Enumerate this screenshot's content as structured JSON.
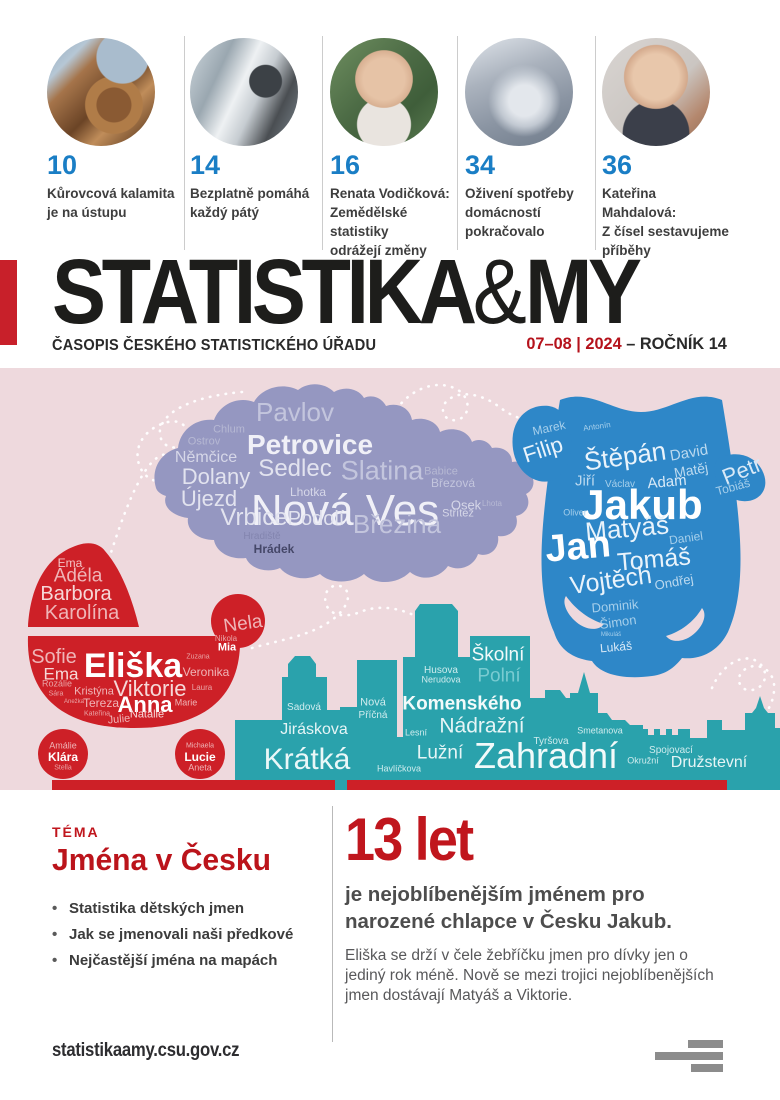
{
  "toc": {
    "items": [
      {
        "page": "10",
        "photo": "logs",
        "caption_lines": [
          "Kůrovcová kalamita",
          "je na ústupu"
        ]
      },
      {
        "page": "14",
        "photo": "van",
        "caption_lines": [
          "Bezplatně pomáhá",
          "každý pátý"
        ]
      },
      {
        "page": "16",
        "photo": "portrait-green",
        "caption_lines": [
          "Renata Vodičková:",
          "Zemědělské statistiky",
          "odrážejí změny"
        ]
      },
      {
        "page": "34",
        "photo": "coins",
        "caption_lines": [
          "Oživení spotřeby",
          "domácností",
          "pokračovalo"
        ]
      },
      {
        "page": "36",
        "photo": "portrait-studio",
        "caption_lines": [
          "Kateřina Mahdalová:",
          "Z čísel sestavujeme",
          "příběhy"
        ]
      }
    ]
  },
  "masthead": {
    "title_main": "STATISTIKA",
    "title_amp": "&",
    "title_end": "MY",
    "subtitle": "ČASOPIS ČESKÉHO STATISTICKÉHO ÚŘADU",
    "issue": "07–08 | 2024",
    "volume": " – ROČNÍK 14"
  },
  "illustration": {
    "clouds": {
      "map_villages": [
        [
          "Pavlov",
          295,
          44,
          26,
          0,
          "#c3c5dd",
          0
        ],
        [
          "Chlum",
          229,
          62,
          11,
          0,
          "#b6b8d3",
          0
        ],
        [
          "Ostrov",
          204,
          74,
          11,
          0,
          "#b6b8d3",
          0
        ],
        [
          "Petrovice",
          310,
          77,
          28,
          1,
          "#f0f0f7",
          0
        ],
        [
          "Němčice",
          206,
          90,
          16,
          0,
          "#d6d7e8",
          0
        ],
        [
          "Sedlec",
          295,
          101,
          24,
          0,
          "#e2e3ef",
          0
        ],
        [
          "Slatina",
          382,
          103,
          27,
          0,
          "#c3c5dd",
          0
        ],
        [
          "Babice",
          441,
          104,
          11,
          0,
          "#b6b8d3",
          0
        ],
        [
          "Dolany",
          216,
          109,
          22,
          0,
          "#e2e3ef",
          0
        ],
        [
          "Březová",
          453,
          115,
          12,
          0,
          "#c3c5dd",
          0
        ],
        [
          "Lhotka",
          308,
          124,
          12,
          0,
          "#d6d7e8",
          0
        ],
        [
          "Újezd",
          209,
          131,
          22,
          0,
          "#e2e3ef",
          0
        ],
        [
          "Nová Ves",
          345,
          143,
          44,
          0,
          "#f0f0f7",
          0
        ],
        [
          "Osek",
          466,
          137,
          13,
          0,
          "#d6d7e8",
          0
        ],
        [
          "Lhota",
          492,
          136,
          8,
          0,
          "#b6b8d3",
          0
        ],
        [
          "Vrbice",
          254,
          150,
          24,
          0,
          "#e2e3ef",
          0
        ],
        [
          "Podolí",
          316,
          151,
          20,
          0,
          "#e2e3ef",
          0
        ],
        [
          "Březina",
          397,
          156,
          26,
          0,
          "#c3c5dd",
          0
        ],
        [
          "Střítež",
          458,
          146,
          11,
          0,
          "#d6d7e8",
          0
        ],
        [
          "Hradiště",
          262,
          169,
          10,
          0,
          "#8385af",
          0
        ],
        [
          "Hrádek",
          274,
          181,
          12,
          1,
          "#454768",
          0
        ]
      ],
      "girl_names": [
        [
          "Ema",
          70,
          195,
          12,
          0,
          "#f3c4c5",
          0
        ],
        [
          "Adéla",
          78,
          208,
          19,
          0,
          "#efb5b7",
          0
        ],
        [
          "Barbora",
          76,
          226,
          20,
          0,
          "#f6d8d8",
          0
        ],
        [
          "Karolína",
          82,
          245,
          20,
          0,
          "#efb5b7",
          0
        ],
        [
          "Nela",
          243,
          256,
          19,
          0,
          "#efb5b7",
          -8
        ],
        [
          "Nikola",
          226,
          271,
          8,
          0,
          "#e9a3a5",
          0
        ],
        [
          "Mia",
          227,
          280,
          11,
          1,
          "#ffffff",
          0
        ],
        [
          "Sofie",
          54,
          289,
          20,
          0,
          "#efb5b7",
          0
        ],
        [
          "Ema",
          61,
          306,
          17,
          0,
          "#f6d8d8",
          0
        ],
        [
          "Eliška",
          133,
          298,
          34,
          1,
          "#ffffff",
          0
        ],
        [
          "Zuzana",
          198,
          289,
          7,
          0,
          "#e9a3a5",
          0
        ],
        [
          "Veronika",
          206,
          304,
          12,
          0,
          "#efb5b7",
          0
        ],
        [
          "Rozálie",
          57,
          316,
          9,
          0,
          "#e9a3a5",
          0
        ],
        [
          "Sára",
          56,
          326,
          7,
          0,
          "#e9a3a5",
          0
        ],
        [
          "Kristýna",
          94,
          324,
          11,
          0,
          "#efb5b7",
          0
        ],
        [
          "Viktorie",
          150,
          321,
          22,
          0,
          "#f6d8d8",
          0
        ],
        [
          "Laura",
          202,
          320,
          8,
          0,
          "#e9a3a5",
          0
        ],
        [
          "Anežka",
          74,
          334,
          6,
          0,
          "#e9a3a5",
          0
        ],
        [
          "Tereza",
          101,
          335,
          12,
          0,
          "#efb5b7",
          0
        ],
        [
          "Anna",
          145,
          337,
          22,
          1,
          "#ffffff",
          0
        ],
        [
          "Marie",
          186,
          335,
          9,
          0,
          "#efb5b7",
          0
        ],
        [
          "Kateřina",
          97,
          346,
          7,
          0,
          "#e9a3a5",
          0
        ],
        [
          "Julie",
          119,
          352,
          11,
          0,
          "#efb5b7",
          -5
        ],
        [
          "Natálie",
          147,
          347,
          11,
          0,
          "#f6d8d8",
          0
        ],
        [
          "Amálie",
          63,
          378,
          9,
          0,
          "#efb5b7",
          0
        ],
        [
          "Klára",
          63,
          389,
          12,
          1,
          "#ffffff",
          0
        ],
        [
          "Stella",
          63,
          400,
          7,
          0,
          "#e9a3a5",
          0
        ],
        [
          "Michaela",
          200,
          378,
          7,
          0,
          "#efb5b7",
          0
        ],
        [
          "Lucie",
          200,
          389,
          12,
          1,
          "#ffffff",
          0
        ],
        [
          "Aneta",
          200,
          400,
          9,
          0,
          "#efb5b7",
          0
        ]
      ],
      "boy_names": [
        [
          "Marek",
          549,
          60,
          12,
          0,
          "#a6cfeb",
          -12
        ],
        [
          "Antonín",
          597,
          59,
          8,
          0,
          "#a6cfeb",
          -8
        ],
        [
          "Filip",
          543,
          82,
          22,
          0,
          "#e9f3fb",
          -18
        ],
        [
          "Štěpán",
          625,
          88,
          26,
          0,
          "#e9f3fb",
          -8
        ],
        [
          "David",
          689,
          85,
          15,
          0,
          "#bbd9ef",
          -10
        ],
        [
          "Matěj",
          691,
          102,
          14,
          0,
          "#bbd9ef",
          -10
        ],
        [
          "Petr",
          742,
          103,
          22,
          0,
          "#d8e9f7",
          -22
        ],
        [
          "Tobiáš",
          733,
          119,
          12,
          0,
          "#a6cfeb",
          -15
        ],
        [
          "Jiří",
          585,
          113,
          15,
          0,
          "#bbd9ef",
          0
        ],
        [
          "Václav",
          620,
          117,
          10,
          0,
          "#a6cfeb",
          0
        ],
        [
          "Adam",
          667,
          114,
          15,
          0,
          "#d8e9f7",
          -5
        ],
        [
          "Jakub",
          642,
          137,
          42,
          1,
          "#ffffff",
          0
        ],
        [
          "Oliver",
          575,
          145,
          9,
          0,
          "#a6cfeb",
          0
        ],
        [
          "Matyáš",
          627,
          160,
          26,
          0,
          "#e9f3fb",
          -5
        ],
        [
          "Daniel",
          686,
          170,
          12,
          0,
          "#a6cfeb",
          -8
        ],
        [
          "Jan",
          578,
          179,
          38,
          1,
          "#ffffff",
          -5
        ],
        [
          "Tomáš",
          654,
          192,
          25,
          0,
          "#e9f3fb",
          -5
        ],
        [
          "Vojtěch",
          611,
          213,
          25,
          0,
          "#e9f3fb",
          -8
        ],
        [
          "Ondřej",
          674,
          214,
          13,
          0,
          "#bbd9ef",
          -10
        ],
        [
          "Dominik",
          615,
          238,
          13,
          0,
          "#a6cfeb",
          -5
        ],
        [
          "Šimon",
          618,
          254,
          13,
          0,
          "#a6cfeb",
          -8
        ],
        [
          "Mikuláš",
          611,
          267,
          6,
          0,
          "#a6cfeb",
          0
        ],
        [
          "Lukáš",
          616,
          279,
          12,
          0,
          "#d8e9f7",
          -5
        ]
      ],
      "street_names": [
        [
          "Sadová",
          304,
          340,
          10,
          0,
          "#cfecee",
          0
        ],
        [
          "Jiráskova",
          314,
          362,
          16,
          0,
          "#e6f5f6",
          0
        ],
        [
          "Krátká",
          307,
          392,
          30,
          0,
          "#eaf7f8",
          0
        ],
        [
          "Nová",
          373,
          335,
          11,
          0,
          "#cfecee",
          0
        ],
        [
          "Příčná",
          373,
          348,
          10,
          0,
          "#cfecee",
          0
        ],
        [
          "Husova",
          441,
          303,
          10,
          0,
          "#cfecee",
          0
        ],
        [
          "Nerudova",
          441,
          312,
          9,
          0,
          "#cfecee",
          0
        ],
        [
          "Školní",
          498,
          287,
          19,
          0,
          "#f2fafa",
          0
        ],
        [
          "Polní",
          499,
          308,
          19,
          0,
          "#79cbd1",
          0
        ],
        [
          "Komenského",
          462,
          336,
          19,
          1,
          "#f2fafa",
          0
        ],
        [
          "Nádražní",
          482,
          358,
          21,
          0,
          "#e6f5f6",
          0
        ],
        [
          "Lesní",
          416,
          365,
          9,
          0,
          "#cfecee",
          0
        ],
        [
          "Lužní",
          440,
          385,
          19,
          0,
          "#e6f5f6",
          0
        ],
        [
          "Havlíčkova",
          399,
          401,
          9,
          0,
          "#cfecee",
          0
        ],
        [
          "Zahradní",
          546,
          388,
          36,
          0,
          "#f2fafa",
          0
        ],
        [
          "Tyršova",
          551,
          374,
          10,
          0,
          "#cfecee",
          0
        ],
        [
          "Smetanova",
          600,
          363,
          9,
          0,
          "#cfecee",
          0
        ],
        [
          "Spojovací",
          671,
          383,
          10,
          0,
          "#cfecee",
          0
        ],
        [
          "Okružní",
          643,
          393,
          9,
          0,
          "#cfecee",
          0
        ],
        [
          "Družstevní",
          709,
          395,
          16,
          0,
          "#e6f5f6",
          0
        ]
      ]
    }
  },
  "tema": {
    "label": "TÉMA",
    "title": "Jména v Česku",
    "bullets": [
      "Statistika dětských jmen",
      "Jak se jmenovali naši předkové",
      "Nejčastější jména na mapách"
    ]
  },
  "feature": {
    "stat": "13 let",
    "lead": "je nejoblíbenějším jménem pro narozené chlapce v Česku Jakub.",
    "body": "Eliška se drží v čele žebříčku jmen pro dívky jen o jediný rok méně. Nově se mezi trojici nejoblíbenějších jmen dostávají Matyáš a Viktorie."
  },
  "footer": {
    "url": "statistikaamy.csu.gov.cz"
  },
  "colors": {
    "accent_red": "#c8202a",
    "page_blue": "#1a7ec5",
    "pink_bg": "#eed9dd",
    "map_purple": "#9597c1",
    "onesie_blue": "#2e87c8",
    "skyline_teal": "#2aa2ac",
    "carriage_red": "#cd2027"
  }
}
